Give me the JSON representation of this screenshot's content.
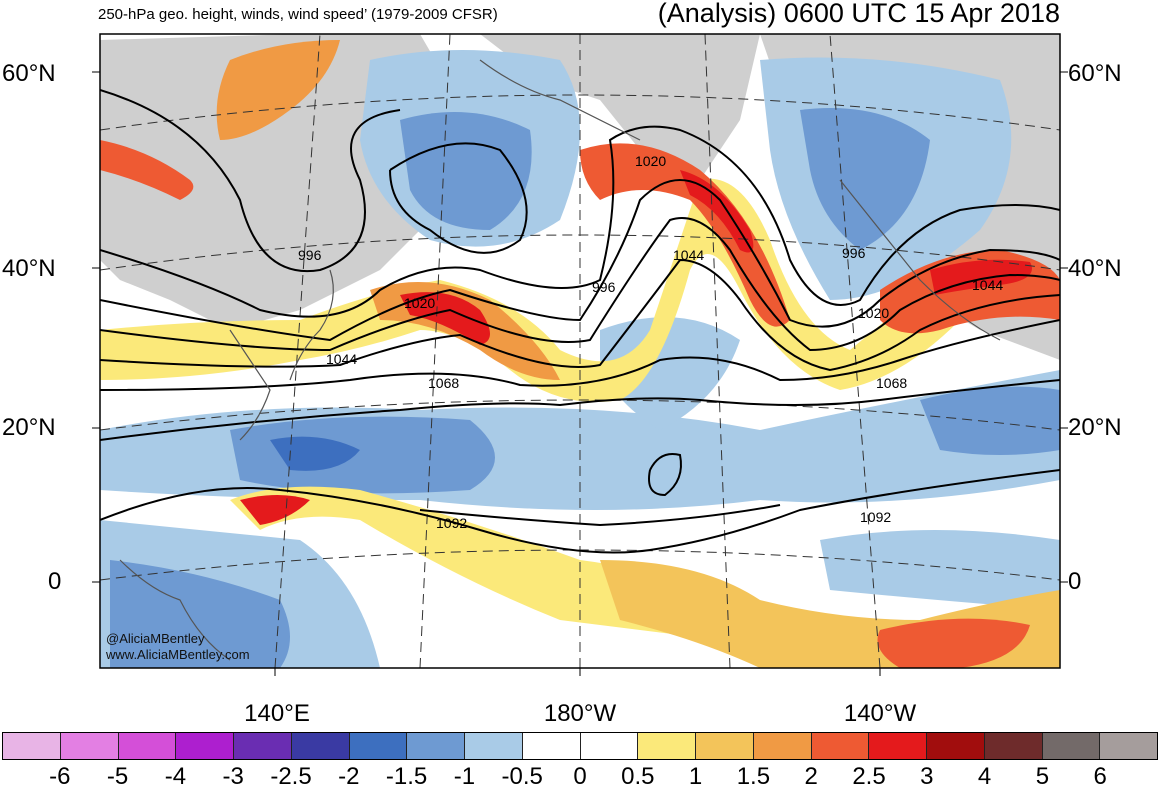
{
  "header": {
    "left_title": "250-hPa geo. height, winds, wind speed’ (1979-2009 CFSR)",
    "right_title": "(Analysis) 0600 UTC 15 Apr 2018"
  },
  "lat_labels": [
    "60°N",
    "40°N",
    "20°N",
    "0"
  ],
  "lon_labels": [
    "140°E",
    "180°W",
    "140°W"
  ],
  "contour_labels": [
    "996",
    "996",
    "996",
    "1020",
    "1020",
    "1020",
    "1044",
    "1044",
    "1044",
    "1068",
    "1068",
    "1092",
    "1092"
  ],
  "colorbar": {
    "ticks": [
      "-6",
      "-5",
      "-4",
      "-3",
      "-2.5",
      "-2",
      "-1.5",
      "-1",
      "-0.5",
      "0",
      "0.5",
      "1",
      "1.5",
      "2",
      "2.5",
      "3",
      "4",
      "5",
      "6"
    ],
    "colors": [
      "#e8b4e6",
      "#e37fe3",
      "#d44fd8",
      "#ad1fcf",
      "#6a2db2",
      "#3a3aa3",
      "#3d6fbf",
      "#6e9ad2",
      "#a9cbe7",
      "#ffffff",
      "#ffffff",
      "#fbe97a",
      "#f3c45a",
      "#f09a44",
      "#ee5a33",
      "#e41a1c",
      "#a10d0d",
      "#6e2b2b",
      "#736a69",
      "#a59d9c"
    ]
  },
  "credits": [
    "@AliciaMBentley",
    "www.AliciaMBentley.com"
  ]
}
